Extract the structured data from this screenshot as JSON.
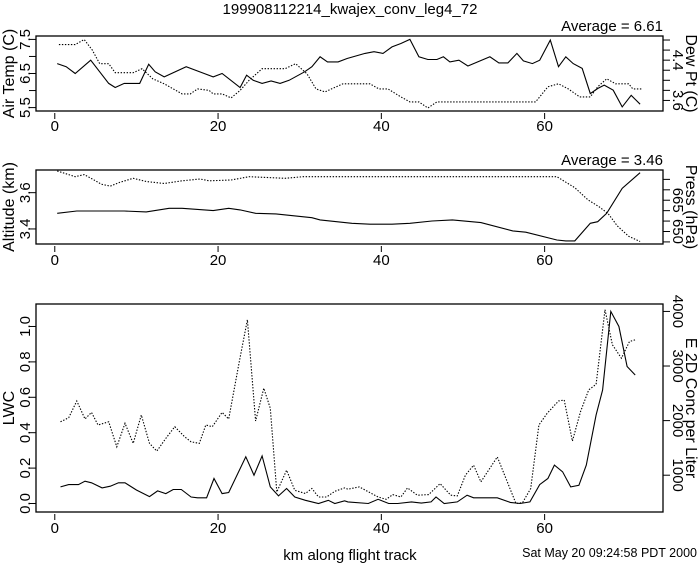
{
  "title": "199908112214_kwajex_conv_leg4_72",
  "footer": {
    "xlabel": "km along flight track",
    "timestamp": "Sat May 20 09:24:58 PDT 2000"
  },
  "colors": {
    "line": "#000000",
    "background": "#ffffff"
  },
  "chart_data": [
    {
      "type": "line",
      "annotation": "Average = 6.61",
      "xlabel": "",
      "xlim": [
        -2.3,
        74.5
      ],
      "xticks": [
        0,
        20,
        40,
        60
      ],
      "ylabel": "Air Temp (C)",
      "ylim": [
        5.4,
        7.6
      ],
      "yticks": [
        5.5,
        6.0,
        6.5,
        7.0,
        7.5
      ],
      "ytick_labels": [
        "5.5",
        "6.5",
        "7.5"
      ],
      "ytick_label_values": [
        5.5,
        6.5,
        7.5
      ],
      "y2label": "Dew Pt (C)",
      "y2lim": [
        3.39,
        4.88
      ],
      "y2ticks": [
        3.6,
        3.8,
        4.0,
        4.2,
        4.4,
        4.6,
        4.8
      ],
      "y2tick_labels": [
        "3.6",
        "4.4"
      ],
      "y2tick_label_values": [
        3.6,
        4.4
      ],
      "series": [
        {
          "name": "Air Temp",
          "axis": "left",
          "style": "solid",
          "x": [
            0.3,
            1.4,
            2.5,
            4.4,
            5.5,
            6.6,
            7.4,
            8.5,
            10.4,
            11.5,
            12.3,
            13.4,
            16.1,
            18.3,
            19.4,
            20.5,
            22.7,
            23.5,
            24.3,
            25.4,
            26.5,
            27.6,
            28.7,
            30.6,
            31.5,
            32.5,
            33.4,
            34.7,
            35.8,
            38.0,
            39.1,
            40.2,
            41.3,
            42.4,
            43.5,
            44.6,
            45.7,
            46.8,
            47.6,
            48.4,
            49.5,
            50.6,
            53.3,
            54.4,
            55.5,
            56.6,
            57.4,
            58.5,
            59.4,
            60.7,
            61.7,
            62.6,
            63.5,
            64.6,
            65.6,
            66.5,
            67.3,
            68.4,
            69.5,
            70.6,
            71.7
          ],
          "y": [
            6.79,
            6.7,
            6.5,
            6.89,
            6.55,
            6.21,
            6.09,
            6.21,
            6.21,
            6.77,
            6.55,
            6.4,
            6.7,
            6.5,
            6.4,
            6.5,
            6.09,
            6.45,
            6.3,
            6.21,
            6.28,
            6.21,
            6.3,
            6.55,
            6.7,
            6.99,
            6.84,
            6.84,
            6.94,
            7.09,
            7.14,
            7.09,
            7.28,
            7.38,
            7.5,
            6.99,
            6.91,
            6.91,
            6.99,
            6.84,
            6.89,
            6.72,
            6.99,
            6.81,
            6.81,
            7.09,
            6.87,
            6.79,
            6.89,
            7.48,
            6.7,
            6.99,
            6.79,
            6.65,
            5.91,
            6.06,
            6.16,
            6.01,
            5.52,
            5.86,
            5.6
          ]
        },
        {
          "name": "Dew Pt",
          "axis": "right",
          "style": "dotted",
          "x": [
            0.5,
            2.5,
            3.6,
            4.6,
            5.5,
            6.6,
            7.4,
            9.6,
            10.7,
            12.0,
            13.4,
            15.6,
            16.6,
            17.5,
            18.9,
            19.4,
            20.5,
            21.6,
            22.7,
            23.8,
            25.4,
            28.2,
            29.5,
            30.9,
            32.0,
            33.1,
            33.9,
            35.3,
            38.6,
            39.7,
            40.8,
            42.4,
            43.5,
            44.6,
            45.7,
            46.8,
            47.9,
            58.9,
            60.4,
            61.7,
            62.9,
            64.3,
            65.6,
            66.5,
            67.6,
            68.7,
            70.3,
            70.8,
            71.9
          ],
          "y": [
            4.71,
            4.71,
            4.81,
            4.6,
            4.33,
            4.33,
            4.15,
            4.15,
            4.23,
            4.03,
            3.93,
            3.73,
            3.73,
            3.83,
            3.8,
            3.73,
            3.73,
            3.65,
            3.8,
            4.0,
            4.23,
            4.23,
            4.33,
            4.13,
            3.83,
            3.77,
            3.83,
            3.93,
            3.93,
            3.83,
            3.83,
            3.67,
            3.57,
            3.57,
            3.45,
            3.57,
            3.57,
            3.57,
            3.87,
            3.93,
            3.83,
            3.67,
            3.67,
            3.87,
            4.03,
            3.93,
            3.93,
            3.83,
            3.83
          ]
        }
      ]
    },
    {
      "type": "line",
      "annotation": "Average = 3.46",
      "xlabel": "",
      "xlim": [
        -2.3,
        74.5
      ],
      "xticks": [
        0,
        20,
        40,
        60
      ],
      "ylabel": "Altitude (km)",
      "ylim": [
        3.317,
        3.725
      ],
      "yticks": [
        3.4,
        3.6
      ],
      "ytick_labels": [
        "3.4",
        "3.6"
      ],
      "ytick_label_values": [
        3.4,
        3.6
      ],
      "y2label": "Press (hPa)",
      "y2lim": [
        644,
        679.5
      ],
      "y2ticks": [
        645,
        650,
        655,
        660,
        665,
        670,
        675
      ],
      "y2tick_labels": [
        "650",
        "665"
      ],
      "y2tick_label_values": [
        650,
        665
      ],
      "series": [
        {
          "name": "Altitude",
          "axis": "left",
          "style": "solid",
          "x": [
            0.3,
            2.7,
            8.5,
            11.2,
            14.0,
            15.6,
            19.4,
            21.3,
            22.7,
            24.6,
            27.1,
            31.5,
            32.5,
            36.4,
            38.6,
            41.3,
            43.5,
            46.2,
            48.7,
            52.2,
            56.1,
            57.7,
            61.5,
            62.6,
            63.7,
            65.6,
            66.5,
            67.6,
            69.5,
            71.7
          ],
          "y": [
            3.486,
            3.499,
            3.499,
            3.494,
            3.514,
            3.514,
            3.501,
            3.514,
            3.505,
            3.486,
            3.483,
            3.462,
            3.45,
            3.431,
            3.426,
            3.426,
            3.431,
            3.444,
            3.45,
            3.435,
            3.389,
            3.382,
            3.339,
            3.334,
            3.334,
            3.431,
            3.44,
            3.486,
            3.624,
            3.71
          ]
        },
        {
          "name": "Pressure",
          "axis": "right",
          "style": "dotted",
          "x": [
            0.3,
            1.4,
            2.5,
            3.6,
            4.6,
            5.7,
            6.8,
            7.9,
            9.6,
            11.2,
            13.4,
            15.6,
            17.8,
            18.9,
            21.6,
            23.8,
            28.2,
            30.4,
            61.5,
            63.7,
            65.3,
            66.7,
            67.8,
            68.9,
            70.3,
            71.7
          ],
          "y": [
            679.0,
            677.7,
            676.3,
            677.3,
            675.2,
            672.7,
            671.8,
            673.5,
            675.5,
            674.0,
            673.0,
            674.3,
            675.2,
            674.3,
            674.7,
            676.3,
            675.5,
            676.3,
            676.3,
            671.0,
            665.2,
            661.8,
            658.5,
            652.7,
            647.7,
            645.2
          ]
        }
      ]
    },
    {
      "type": "line",
      "annotation": "",
      "xlabel": "km along flight track",
      "xlim": [
        -2.3,
        74.5
      ],
      "xticks": [
        0,
        20,
        40,
        60
      ],
      "ylabel": "LWC",
      "ylim": [
        -0.048,
        1.127
      ],
      "yticks": [
        0.0,
        0.2,
        0.4,
        0.6,
        0.8,
        1.0
      ],
      "ytick_labels": [
        "0.0",
        "0.2",
        "0.4",
        "0.6",
        "0.8",
        "1.0"
      ],
      "ytick_label_values": [
        0.0,
        0.2,
        0.4,
        0.6,
        0.8,
        1.0
      ],
      "y2label": "E 2D Conc per Liter",
      "y2lim": [
        326,
        4136
      ],
      "y2ticks": [
        1000,
        2000,
        3000,
        4000
      ],
      "y2tick_labels": [
        "1000",
        "2000",
        "3000",
        "4000"
      ],
      "y2tick_label_values": [
        1000,
        2000,
        3000,
        4000
      ],
      "series": [
        {
          "name": "LWC",
          "axis": "left",
          "style": "solid",
          "x": [
            0.7,
            1.7,
            2.9,
            3.7,
            4.5,
            5.8,
            6.8,
            7.8,
            8.6,
            10.0,
            11.6,
            12.6,
            13.6,
            14.5,
            15.5,
            16.7,
            17.5,
            18.6,
            19.5,
            20.5,
            21.3,
            23.4,
            24.4,
            25.4,
            26.4,
            27.4,
            28.4,
            29.4,
            30.7,
            32.3,
            33.5,
            34.3,
            35.5,
            35.9,
            38.4,
            39.6,
            40.9,
            42.0,
            43.7,
            44.9,
            46.1,
            46.7,
            47.7,
            49.3,
            50.5,
            51.3,
            54.2,
            55.8,
            57.0,
            58.2,
            59.4,
            60.4,
            61.2,
            62.2,
            63.2,
            64.2,
            65.1,
            66.3,
            67.1,
            68.1,
            69.1,
            70.1,
            71.1
          ],
          "y": [
            0.094,
            0.107,
            0.107,
            0.126,
            0.117,
            0.088,
            0.098,
            0.117,
            0.117,
            0.076,
            0.039,
            0.071,
            0.056,
            0.079,
            0.079,
            0.037,
            0.032,
            0.032,
            0.141,
            0.056,
            0.062,
            0.264,
            0.16,
            0.269,
            0.094,
            0.043,
            0.085,
            0.037,
            0.018,
            0.0,
            0.018,
            0.0,
            0.015,
            0.009,
            0.0,
            0.024,
            0.0,
            0.0,
            0.009,
            0.002,
            0.009,
            0.037,
            0.0,
            0.009,
            0.047,
            0.032,
            0.032,
            0.006,
            0.0,
            0.009,
            0.107,
            0.141,
            0.217,
            0.179,
            0.094,
            0.103,
            0.217,
            0.5,
            0.641,
            1.085,
            1.0,
            0.774,
            0.726
          ]
        },
        {
          "name": "E 2D Conc",
          "axis": "right",
          "style": "dotted",
          "x": [
            0.7,
            1.7,
            2.7,
            3.7,
            4.5,
            5.3,
            6.6,
            7.6,
            8.6,
            9.6,
            10.6,
            11.6,
            12.5,
            13.6,
            14.7,
            15.9,
            16.7,
            17.7,
            18.5,
            19.3,
            20.5,
            21.3,
            22.6,
            23.6,
            24.6,
            25.6,
            26.4,
            27.2,
            28.4,
            29.4,
            30.7,
            31.5,
            32.3,
            33.3,
            34.3,
            35.5,
            35.9,
            37.3,
            39.6,
            40.6,
            41.4,
            42.4,
            43.2,
            44.4,
            45.8,
            47.2,
            48.5,
            49.3,
            50.3,
            51.3,
            52.2,
            54.2,
            56.5,
            57.3,
            58.3,
            59.3,
            60.3,
            61.7,
            62.4,
            63.4,
            64.4,
            65.4,
            66.3,
            67.4,
            68.3,
            69.4,
            70.4,
            71.1
          ],
          "y": [
            1979,
            2053,
            2359,
            2029,
            2151,
            1919,
            1979,
            1520,
            1950,
            1582,
            2102,
            1582,
            1441,
            1674,
            1888,
            1704,
            1612,
            1582,
            1919,
            1888,
            2151,
            2029,
            3081,
            3847,
            1992,
            2593,
            2225,
            693,
            1092,
            724,
            664,
            756,
            601,
            601,
            706,
            767,
            743,
            785,
            601,
            559,
            645,
            601,
            767,
            633,
            645,
            847,
            633,
            620,
            1000,
            1184,
            877,
            1336,
            480,
            498,
            756,
            1919,
            2133,
            2359,
            2378,
            1625,
            2163,
            2562,
            2666,
            4031,
            3388,
            3144,
            3449,
            3480
          ]
        }
      ]
    }
  ]
}
